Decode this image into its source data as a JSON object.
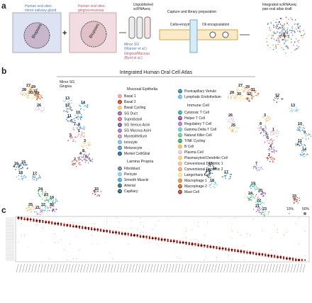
{
  "panel_a": {
    "label": "a",
    "left_site": [
      "Human oral sites:",
      "minor salivary gland"
    ],
    "right_site": [
      "Human oral sites:",
      "gingiva+mucosa"
    ],
    "biopsies": "Biopsies",
    "plus": "+",
    "unpublished": [
      "Unpublished",
      "scRNAseq"
    ],
    "minor_sg": [
      "Minor SG",
      "(Warner et al.)"
    ],
    "gingiva": [
      "Gingiva/Mucosa",
      "(Byrd et al.)"
    ],
    "capture": "Capture and library preparation",
    "cells": "Cells+enzyme",
    "oil": "Oil encapsulation",
    "integrated": [
      "Integrated scRNAseq:",
      "pan-oral atlas draft"
    ]
  },
  "panel_b": {
    "label": "b",
    "title": "Integrated Human Oral Cell Atlas",
    "sources": [
      {
        "name": "Minor SG",
        "color": "#5b8ed6"
      },
      {
        "name": "Gingiva",
        "color": "#d67a8a"
      }
    ],
    "groups": [
      {
        "name": "Mucosal Epithelia",
        "items": [
          {
            "n": "1",
            "name": "Basal 1",
            "color": "#e6a0a0"
          },
          {
            "n": "2",
            "name": "Basal 2",
            "color": "#c0392b"
          },
          {
            "n": "3",
            "name": "Basal Cycling",
            "color": "#e9c46a"
          },
          {
            "n": "4",
            "name": "SG Duct",
            "color": "#8e5ea2"
          },
          {
            "n": "5",
            "name": "Suprabasal",
            "color": "#d35d8a"
          },
          {
            "n": "6",
            "name": "SG Serous Acini",
            "color": "#6a4c93"
          },
          {
            "n": "7",
            "name": "SG Mucous Acini",
            "color": "#9b72cf"
          },
          {
            "n": "8",
            "name": "Myoepithelium",
            "color": "#b48ead"
          },
          {
            "n": "9",
            "name": "Ionocyte",
            "color": "#7fb3d5"
          },
          {
            "n": "10",
            "name": "Melanocyte",
            "color": "#2e86c1"
          },
          {
            "n": "11",
            "name": "Merkel Cell/Glial",
            "color": "#1f4e79"
          }
        ]
      },
      {
        "name": "Lamina Propria",
        "items": [
          {
            "n": "12",
            "name": "Fibroblast",
            "color": "#5d6d7e"
          },
          {
            "n": "13",
            "name": "Pericyte",
            "color": "#85c1e9"
          },
          {
            "n": "14",
            "name": "Smooth Muscle",
            "color": "#3498db"
          },
          {
            "n": "15",
            "name": "Arterial",
            "color": "#1b4f72"
          },
          {
            "n": "16",
            "name": "Capillary",
            "color": "#154360"
          },
          {
            "n": "17",
            "name": "Postcapillary Venule",
            "color": "#2874a6"
          },
          {
            "n": "18",
            "name": "Lymphatic Endothelium",
            "color": "#5dade2"
          }
        ]
      },
      {
        "name": "Immune Cell",
        "items": [
          {
            "n": "19",
            "name": "Cytotoxic T Cell",
            "color": "#17a589"
          },
          {
            "n": "20",
            "name": "Helper T Cell",
            "color": "#7d3c98"
          },
          {
            "n": "21",
            "name": "Regulatory T Cell",
            "color": "#a569bd"
          },
          {
            "n": "22",
            "name": "Gamma Delta T Cell",
            "color": "#48c9b0"
          },
          {
            "n": "23",
            "name": "Natural Killer Cell",
            "color": "#52be80"
          },
          {
            "n": "24",
            "name": "T/NK Cycling",
            "color": "#229954"
          },
          {
            "n": "25",
            "name": "B Cell",
            "color": "#f5b041"
          },
          {
            "n": "26",
            "name": "Plasma Cell",
            "color": "#d7bde2"
          },
          {
            "n": "27",
            "name": "Plasmacytoid Dendritic Cell",
            "color": "#f8c471"
          },
          {
            "n": "28",
            "name": "Conventional Dendritic 1",
            "color": "#f0b27a"
          },
          {
            "n": "29",
            "name": "Conventional Dendritic 2",
            "color": "#e59866"
          },
          {
            "n": "30",
            "name": "Langerhans Cell",
            "color": "#f7dc6f"
          },
          {
            "n": "31",
            "name": "Macrophage 1",
            "color": "#dc7633"
          },
          {
            "n": "32",
            "name": "Macrophage 2",
            "color": "#ba4a00"
          },
          {
            "n": "33",
            "name": "Mast Cell",
            "color": "#922b21"
          }
        ]
      }
    ],
    "left_umap_labels": [
      "27",
      "29",
      "28",
      "31",
      "30",
      "32",
      "26",
      "13",
      "14",
      "10",
      "11",
      "7",
      "9",
      "12",
      "1",
      "5",
      "3",
      "8",
      "6",
      "4",
      "2",
      "16",
      "15",
      "17",
      "18",
      "24",
      "19",
      "20",
      "22",
      "23",
      "21",
      "25",
      "33"
    ],
    "right_umap_labels": [
      "27",
      "29",
      "31",
      "28",
      "30",
      "32",
      "12",
      "26",
      "25",
      "3",
      "8",
      "6",
      "1",
      "5",
      "4",
      "2",
      "7",
      "15",
      "16",
      "17",
      "18",
      "9",
      "10",
      "11",
      "14",
      "13",
      "19",
      "24",
      "20",
      "22",
      "21",
      "23",
      "33"
    ]
  },
  "panel_c": {
    "label": "c",
    "size_legend": [
      "10%",
      "50%"
    ]
  }
}
